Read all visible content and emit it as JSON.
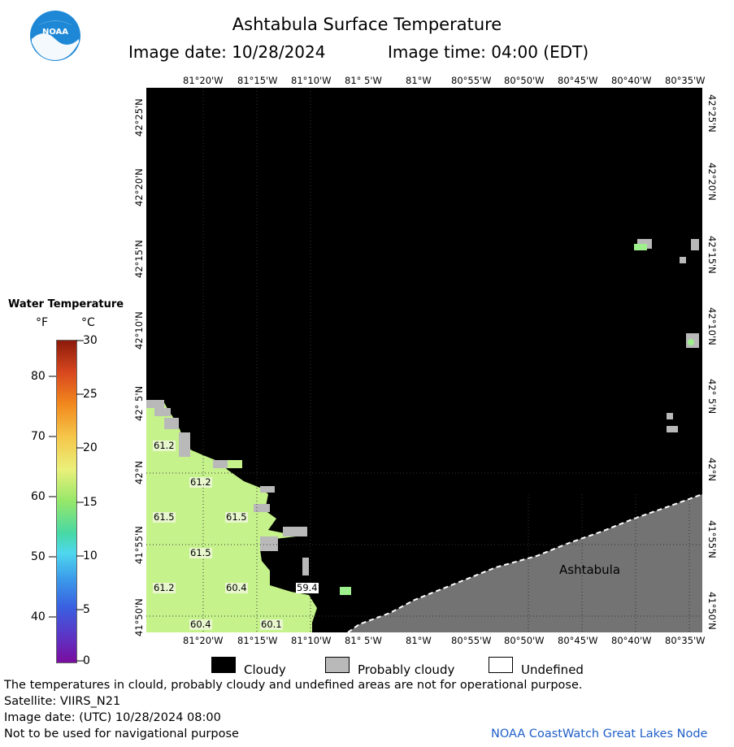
{
  "header": {
    "title": "Ashtabula Surface Temperature",
    "image_date_label": "Image date: 10/28/2024",
    "image_time_label": "Image time: 04:00 (EDT)",
    "logo_text": "NOAA"
  },
  "axes": {
    "longitude_ticks": [
      "81°20'W",
      "81°15'W",
      "81°10'W",
      "81° 5'W",
      "81°W",
      "80°55'W",
      "80°50'W",
      "80°45'W",
      "80°40'W",
      "80°35'W"
    ],
    "latitude_ticks": [
      "42°25'N",
      "42°20'N",
      "42°15'N",
      "42°10'N",
      "42° 5'N",
      "42°N",
      "41°55'N",
      "41°50'N"
    ]
  },
  "legend": {
    "title": "Water Temperature",
    "unit_f": "°F",
    "unit_c": "°C",
    "f_ticks": [
      "80",
      "70",
      "60",
      "50",
      "40"
    ],
    "c_ticks": [
      "30",
      "25",
      "20",
      "15",
      "10",
      "5",
      "0"
    ]
  },
  "map": {
    "place_label": "Ashtabula",
    "water_color": "#c6f28b",
    "cloud_color": "#000000",
    "probable_cloud_color": "#b9b9b9",
    "land_color": "#737373",
    "temperature_labels": [
      "61.2",
      "61.2",
      "61.5",
      "61.5",
      "61.5",
      "61.2",
      "60.4",
      "59.4",
      "60.4",
      "60.1"
    ]
  },
  "key": {
    "cloudy": "Cloudy",
    "probably_cloudy": "Probably cloudy",
    "undefined": "Undefined"
  },
  "footer": {
    "disclaimer": "The temperatures in clould, probably cloudy and undefined areas are not for operational purpose.",
    "satellite": "Satellite: VIIRS_N21",
    "utc_date": "Image date: (UTC) 10/28/2024  08:00",
    "navigation": "Not to be used for navigational purpose",
    "credit": "NOAA CoastWatch Great Lakes Node"
  }
}
